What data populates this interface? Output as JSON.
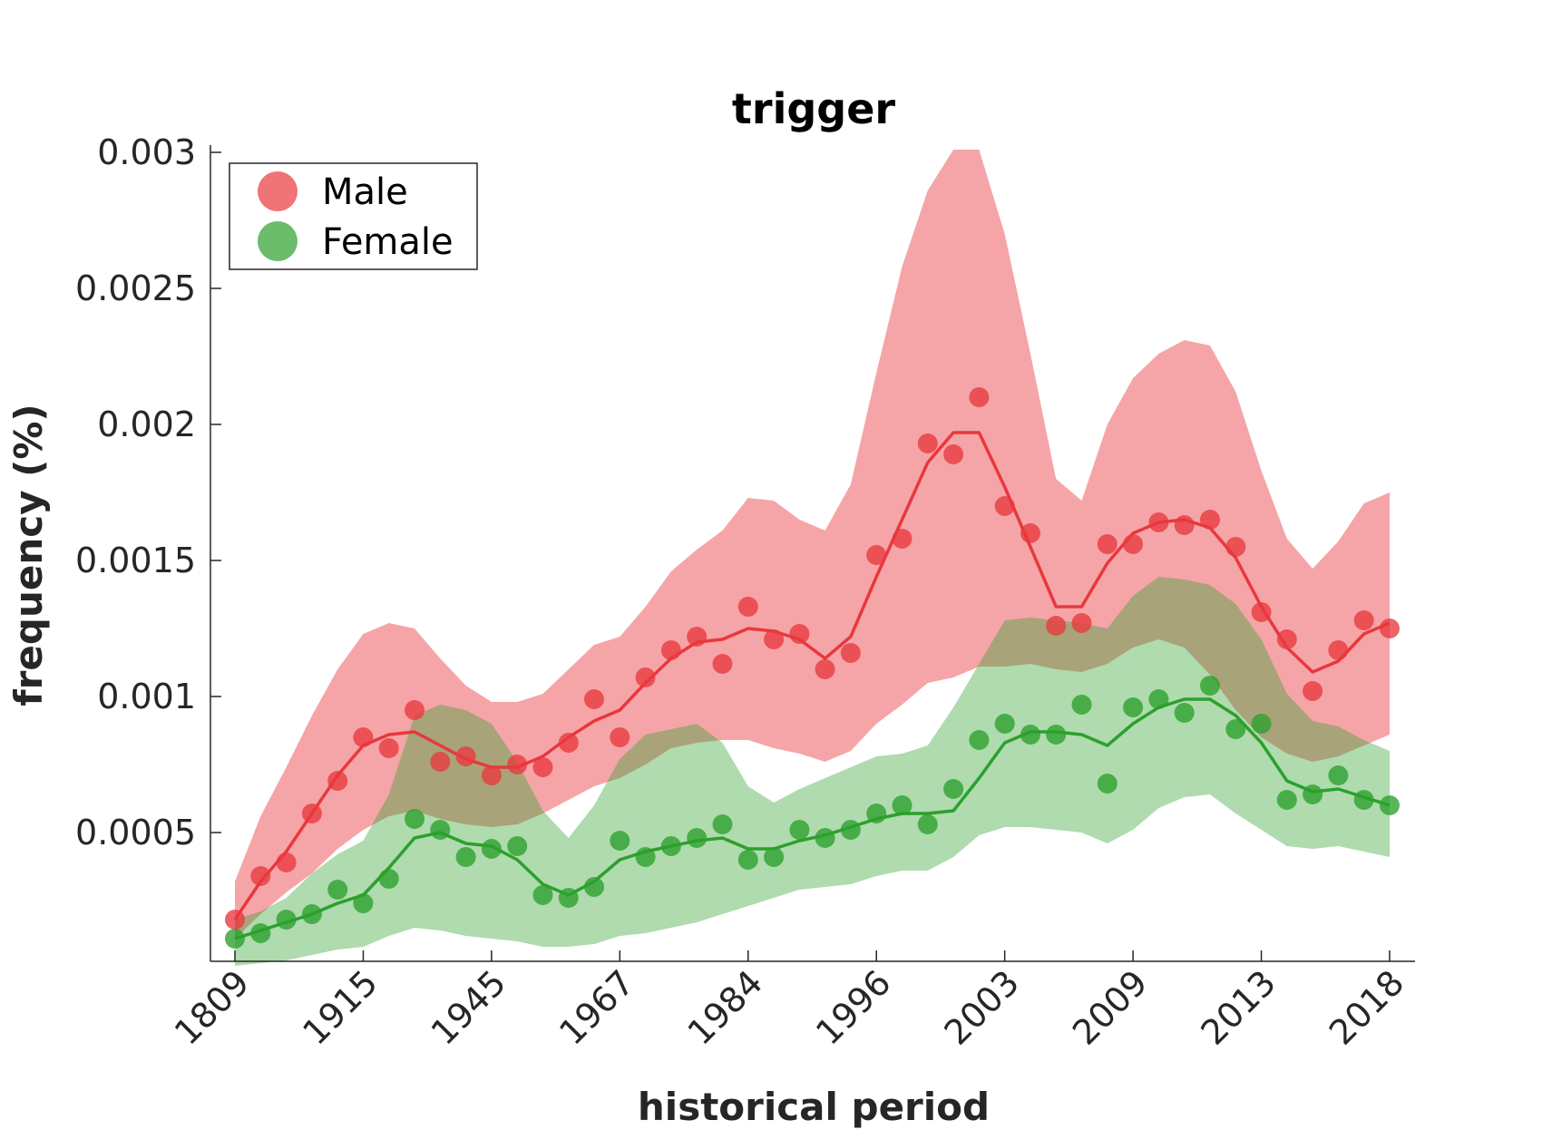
{
  "chart_data": {
    "type": "scatter",
    "title": "trigger",
    "xlabel": "historical period",
    "ylabel": "frequency (%)",
    "x_tick_labels": [
      "1809",
      "1915",
      "1945",
      "1967",
      "1984",
      "1996",
      "2003",
      "2009",
      "2013",
      "2018"
    ],
    "y_ticks": [
      0.0005,
      0.001,
      0.0015,
      0.002,
      0.0025,
      0.003
    ],
    "y_tick_labels": [
      "0.0005",
      "0.001",
      "0.0015",
      "0.002",
      "0.0025",
      "0.003"
    ],
    "ylim": [
      0.0,
      0.003
    ],
    "legend_position": "top-left",
    "grid": false,
    "series": [
      {
        "name": "Male",
        "color": "#e8383d",
        "points": [
          0.00018,
          0.00034,
          0.00039,
          0.00057,
          0.00069,
          0.00085,
          0.00081,
          0.00095,
          0.00076,
          0.00078,
          0.00071,
          0.00075,
          0.00074,
          0.00083,
          0.00099,
          0.00085,
          0.00107,
          0.00117,
          0.00122,
          0.00112,
          0.00133,
          0.00121,
          0.00123,
          0.0011,
          0.00116,
          0.00152,
          0.00158,
          0.00193,
          0.00189,
          0.0021,
          0.0017,
          0.0016,
          0.00126,
          0.00127,
          0.00156,
          0.00156,
          0.00164,
          0.00163,
          0.00165,
          0.00155,
          0.00131,
          0.00121,
          0.00102,
          0.00117,
          0.00128,
          0.00125
        ],
        "trend": [
          0.00018,
          0.00032,
          0.00043,
          0.00057,
          0.00071,
          0.00082,
          0.00086,
          0.00087,
          0.00082,
          0.00077,
          0.00074,
          0.00074,
          0.00078,
          0.00085,
          0.00091,
          0.00095,
          0.00105,
          0.00114,
          0.0012,
          0.00121,
          0.00125,
          0.00124,
          0.00121,
          0.00114,
          0.00122,
          0.00144,
          0.00165,
          0.00186,
          0.00197,
          0.00197,
          0.00177,
          0.00155,
          0.00133,
          0.00133,
          0.00149,
          0.0016,
          0.00164,
          0.00165,
          0.00162,
          0.00151,
          0.00133,
          0.00118,
          0.00109,
          0.00113,
          0.00123,
          0.00127
        ],
        "band_upper": [
          0.00032,
          0.00056,
          0.00074,
          0.00093,
          0.0011,
          0.00123,
          0.00127,
          0.00125,
          0.00114,
          0.00104,
          0.00098,
          0.00098,
          0.00101,
          0.0011,
          0.00119,
          0.00122,
          0.00133,
          0.00146,
          0.00154,
          0.00161,
          0.00173,
          0.00172,
          0.00165,
          0.00161,
          0.00178,
          0.00219,
          0.00258,
          0.00286,
          0.00301,
          0.00301,
          0.0027,
          0.00226,
          0.0018,
          0.00172,
          0.002,
          0.00217,
          0.00226,
          0.00231,
          0.00229,
          0.00212,
          0.00183,
          0.00158,
          0.00147,
          0.00157,
          0.00171,
          0.00175
        ],
        "band_lower": [
          0.00011,
          0.0002,
          0.00028,
          0.00035,
          0.00044,
          0.00051,
          0.00056,
          0.00058,
          0.00055,
          0.00053,
          0.00052,
          0.00053,
          0.00057,
          0.00062,
          0.00067,
          0.0007,
          0.00075,
          0.00081,
          0.00083,
          0.00084,
          0.00084,
          0.00081,
          0.00079,
          0.00076,
          0.0008,
          0.0009,
          0.00097,
          0.00105,
          0.00107,
          0.00111,
          0.00111,
          0.00112,
          0.0011,
          0.00109,
          0.00112,
          0.00118,
          0.00121,
          0.00118,
          0.00108,
          0.00095,
          0.00085,
          0.00079,
          0.00076,
          0.00078,
          0.00082,
          0.00086
        ]
      },
      {
        "name": "Female",
        "color": "#2ca02c",
        "points": [
          0.00011,
          0.00013,
          0.00018,
          0.0002,
          0.00029,
          0.00024,
          0.00033,
          0.00055,
          0.00051,
          0.00041,
          0.00044,
          0.00045,
          0.00027,
          0.00026,
          0.0003,
          0.00047,
          0.00041,
          0.00045,
          0.00048,
          0.00053,
          0.0004,
          0.00041,
          0.00051,
          0.00048,
          0.00051,
          0.00057,
          0.0006,
          0.00053,
          0.00066,
          0.00084,
          0.0009,
          0.00086,
          0.00086,
          0.00097,
          0.00068,
          0.00096,
          0.00099,
          0.00094,
          0.00104,
          0.00088,
          0.0009,
          0.00062,
          0.00064,
          0.00071,
          0.00062,
          0.0006
        ],
        "trend": [
          0.00011,
          0.00014,
          0.00017,
          0.0002,
          0.00024,
          0.00027,
          0.00037,
          0.00048,
          0.0005,
          0.00046,
          0.00045,
          0.0004,
          0.00031,
          0.00027,
          0.00032,
          0.0004,
          0.00043,
          0.00045,
          0.00047,
          0.00048,
          0.00044,
          0.00044,
          0.00047,
          0.00049,
          0.00052,
          0.00055,
          0.00057,
          0.00057,
          0.00058,
          0.0007,
          0.00083,
          0.00087,
          0.00087,
          0.00086,
          0.00082,
          0.0009,
          0.00096,
          0.00099,
          0.00099,
          0.00093,
          0.00083,
          0.00069,
          0.00065,
          0.00066,
          0.00063,
          0.0006
        ],
        "band_upper": [
          0.00018,
          0.00021,
          0.00026,
          0.00035,
          0.00042,
          0.00047,
          0.00064,
          0.00093,
          0.00097,
          0.00095,
          0.0009,
          0.00076,
          0.00058,
          0.00048,
          0.0006,
          0.00077,
          0.00086,
          0.00088,
          0.0009,
          0.00083,
          0.00067,
          0.00061,
          0.00066,
          0.0007,
          0.00074,
          0.00078,
          0.00079,
          0.00082,
          0.00096,
          0.00112,
          0.00128,
          0.00129,
          0.00128,
          0.00127,
          0.00125,
          0.00137,
          0.00144,
          0.00143,
          0.00141,
          0.00134,
          0.00121,
          0.00101,
          0.00091,
          0.00089,
          0.00084,
          0.0008
        ],
        "band_lower": [
          1e-05,
          2e-05,
          3e-05,
          5e-05,
          7e-05,
          8e-05,
          0.00012,
          0.00015,
          0.00014,
          0.00012,
          0.00011,
          0.0001,
          8e-05,
          8e-05,
          9e-05,
          0.00012,
          0.00013,
          0.00015,
          0.00017,
          0.0002,
          0.00023,
          0.00026,
          0.00029,
          0.0003,
          0.00031,
          0.00034,
          0.00036,
          0.00036,
          0.00041,
          0.00049,
          0.00052,
          0.00052,
          0.00051,
          0.0005,
          0.00046,
          0.00051,
          0.00059,
          0.00063,
          0.00064,
          0.00057,
          0.00051,
          0.00045,
          0.00044,
          0.00045,
          0.00043,
          0.00041
        ]
      }
    ]
  }
}
